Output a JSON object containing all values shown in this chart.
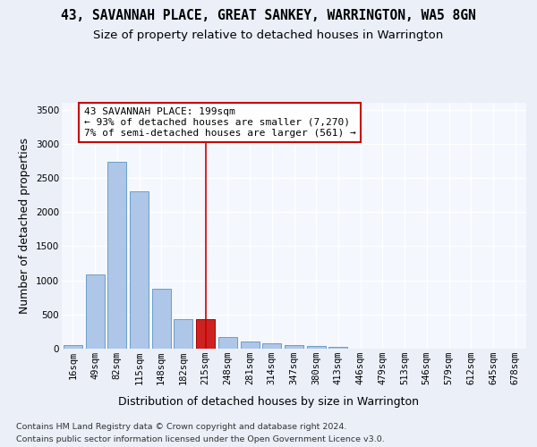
{
  "title_line1": "43, SAVANNAH PLACE, GREAT SANKEY, WARRINGTON, WA5 8GN",
  "title_line2": "Size of property relative to detached houses in Warrington",
  "xlabel": "Distribution of detached houses by size in Warrington",
  "ylabel": "Number of detached properties",
  "footer_line1": "Contains HM Land Registry data © Crown copyright and database right 2024.",
  "footer_line2": "Contains public sector information licensed under the Open Government Licence v3.0.",
  "bar_labels": [
    "16sqm",
    "49sqm",
    "82sqm",
    "115sqm",
    "148sqm",
    "182sqm",
    "215sqm",
    "248sqm",
    "281sqm",
    "314sqm",
    "347sqm",
    "380sqm",
    "413sqm",
    "446sqm",
    "479sqm",
    "513sqm",
    "546sqm",
    "579sqm",
    "612sqm",
    "645sqm",
    "678sqm"
  ],
  "bar_values": [
    50,
    1090,
    2730,
    2310,
    880,
    430,
    430,
    175,
    110,
    75,
    55,
    35,
    20,
    5,
    3,
    2,
    1,
    1,
    0,
    0,
    0
  ],
  "bar_color": "#aec6e8",
  "bar_edge_color": "#6a9fc8",
  "highlight_bar_index": 6,
  "highlight_bar_color": "#cc2222",
  "highlight_bar_edge_color": "#aa0000",
  "vline_color": "#cc0000",
  "annotation_text": "43 SAVANNAH PLACE: 199sqm\n← 93% of detached houses are smaller (7,270)\n7% of semi-detached houses are larger (561) →",
  "annotation_box_facecolor": "#ffffff",
  "annotation_box_edgecolor": "#cc0000",
  "ylim": [
    0,
    3600
  ],
  "yticks": [
    0,
    500,
    1000,
    1500,
    2000,
    2500,
    3000,
    3500
  ],
  "bg_color": "#eaeff8",
  "plot_bg_color": "#f4f7fd",
  "grid_color": "#ffffff",
  "title_fontsize": 10.5,
  "subtitle_fontsize": 9.5,
  "axis_label_fontsize": 9,
  "tick_fontsize": 7.5,
  "footer_fontsize": 6.8,
  "annotation_fontsize": 8
}
